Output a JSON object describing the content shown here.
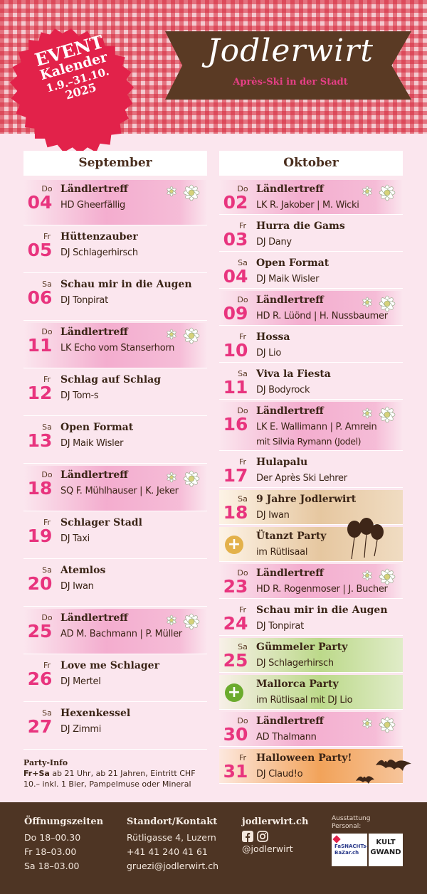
{
  "brand": {
    "logo": "Jodlerwirt",
    "tagline": "Après-Ski in der Stadt"
  },
  "badge": {
    "line1": "EVENT",
    "line2": "Kalender",
    "line3": "1.9.–31.10.",
    "line4": "2025"
  },
  "months": {
    "september": "September",
    "oktober": "Oktober"
  },
  "september": [
    {
      "wd": "Do",
      "day": "04",
      "title": "Ländlertreff",
      "sub": "HD Gheerfällig",
      "style": "pink",
      "flower": true
    },
    {
      "wd": "Fr",
      "day": "05",
      "title": "Hüttenzauber",
      "sub": "DJ Schlagerhirsch",
      "style": "",
      "flower": false
    },
    {
      "wd": "Sa",
      "day": "06",
      "title": "Schau mir in die Augen",
      "sub": "DJ Tonpirat",
      "style": "",
      "flower": false
    },
    {
      "wd": "Do",
      "day": "11",
      "title": "Ländlertreff",
      "sub": "LK Echo vom Stanserhorn",
      "style": "pink",
      "flower": true
    },
    {
      "wd": "Fr",
      "day": "12",
      "title": "Schlag auf Schlag",
      "sub": "DJ Tom-s",
      "style": "",
      "flower": false
    },
    {
      "wd": "Sa",
      "day": "13",
      "title": "Open Format",
      "sub": "DJ Maik Wisler",
      "style": "",
      "flower": false
    },
    {
      "wd": "Do",
      "day": "18",
      "title": "Ländlertreff",
      "sub": "SQ F. Mühlhauser | K. Jeker",
      "style": "pink",
      "flower": true
    },
    {
      "wd": "Fr",
      "day": "19",
      "title": "Schlager Stadl",
      "sub": "DJ Taxi",
      "style": "",
      "flower": false
    },
    {
      "wd": "Sa",
      "day": "20",
      "title": "Atemlos",
      "sub": "DJ Iwan",
      "style": "",
      "flower": false
    },
    {
      "wd": "Do",
      "day": "25",
      "title": "Ländlertreff",
      "sub": "AD M. Bachmann | P. Müller",
      "style": "pink",
      "flower": true
    },
    {
      "wd": "Fr",
      "day": "26",
      "title": "Love me Schlager",
      "sub": "DJ Mertel",
      "style": "",
      "flower": false
    },
    {
      "wd": "Sa",
      "day": "27",
      "title": "Hexenkessel",
      "sub": "DJ Zimmi",
      "style": "",
      "flower": false
    }
  ],
  "oktober": [
    {
      "wd": "Do",
      "day": "02",
      "title": "Ländlertreff",
      "sub": "LK R. Jakober | M. Wicki",
      "style": "pink",
      "flower": true
    },
    {
      "wd": "Fr",
      "day": "03",
      "title": "Hurra die Gams",
      "sub": "DJ Dany",
      "style": "",
      "flower": false
    },
    {
      "wd": "Sa",
      "day": "04",
      "title": "Open Format",
      "sub": "DJ Maik Wisler",
      "style": "",
      "flower": false
    },
    {
      "wd": "Do",
      "day": "09",
      "title": "Ländlertreff",
      "sub": "HD R. Lüönd | H. Nussbaumer",
      "style": "pink",
      "flower": true
    },
    {
      "wd": "Fr",
      "day": "10",
      "title": "Hossa",
      "sub": "DJ Lio",
      "style": "",
      "flower": false
    },
    {
      "wd": "Sa",
      "day": "11",
      "title": "Viva la Fiesta",
      "sub": "DJ Bodyrock",
      "style": "",
      "flower": false
    },
    {
      "wd": "Do",
      "day": "16",
      "title": "Ländlertreff",
      "sub": "LK E. Wallimann | P. Amrein",
      "sub2": "mit Silvia Rymann (Jodel)",
      "style": "pink",
      "flower": true
    },
    {
      "wd": "Fr",
      "day": "17",
      "title": "Hulapalu",
      "sub": "Der Après Ski Lehrer",
      "style": "",
      "flower": false
    },
    {
      "wd": "Sa",
      "day": "18",
      "title": "9 Jahre Jodlerwirt",
      "sub": "DJ Iwan",
      "style": "gold",
      "flower": false
    },
    {
      "wd": "",
      "day": "",
      "title": "Ütanzt Party",
      "sub": "im Rütlisaal",
      "style": "gold",
      "plus": "+",
      "plusColor": "#e3b14a",
      "flower": false
    },
    {
      "wd": "Do",
      "day": "23",
      "title": "Ländlertreff",
      "sub": "HD R. Rogenmoser | J. Bucher",
      "style": "pink",
      "flower": true
    },
    {
      "wd": "Fr",
      "day": "24",
      "title": "Schau mir in die Augen",
      "sub": "DJ Tonpirat",
      "style": "",
      "flower": false
    },
    {
      "wd": "Sa",
      "day": "25",
      "title": "Gümmeler Party",
      "sub": "DJ Schlagerhirsch",
      "style": "green",
      "flower": false
    },
    {
      "wd": "",
      "day": "",
      "title": "Mallorca Party",
      "sub": "im Rütlisaal mit DJ Lio",
      "style": "green",
      "plus": "+",
      "plusColor": "#6bab2d",
      "flower": false
    },
    {
      "wd": "Do",
      "day": "30",
      "title": "Ländlertreff",
      "sub": "AD Thalmann",
      "style": "pink",
      "flower": true
    },
    {
      "wd": "Fr",
      "day": "31",
      "title": "Halloween Party!",
      "sub": "DJ Claud!o",
      "style": "orange",
      "flower": false
    }
  ],
  "info": {
    "title": "Party-Info",
    "lead": "Fr+Sa",
    "text": "ab 21 Uhr, ab 21 Jahren, Eintritt CHF 10.– inkl. 1 Bier, Pampelmuse oder Mineral"
  },
  "footer": {
    "hours": {
      "title": "Öffnungszeiten",
      "lines": [
        "Do  18–00.30",
        "Fr   18–03.00",
        "Sa  18–03.00"
      ]
    },
    "contact": {
      "title": "Standort/Kontakt",
      "lines": [
        "Rütligasse 4, Luzern",
        "+41 41 240 41 61",
        "gruezi@jodlerwirt.ch"
      ]
    },
    "web": {
      "title": "jodlerwirt.ch",
      "handle": "@jodlerwirt"
    },
    "ausstattung": {
      "l1": "Ausstattung",
      "l2": "Personal:"
    },
    "sponsor1": {
      "l1": "FaSNACHTs-",
      "l2": "BaZar.ch"
    },
    "sponsor2": {
      "l1": "KULT",
      "l2": "GWAND"
    }
  }
}
